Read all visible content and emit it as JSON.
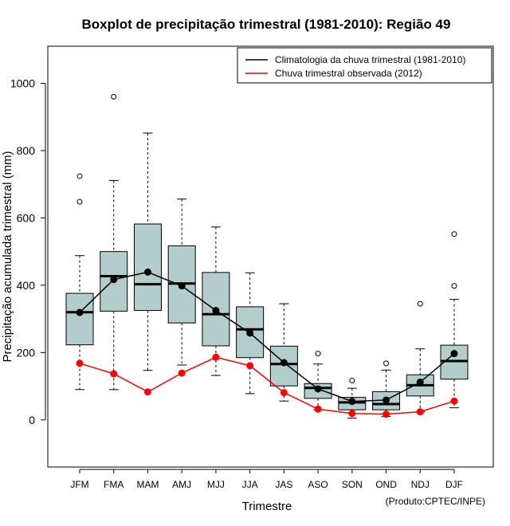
{
  "chart_data": {
    "type": "boxplot",
    "title": "Boxplot de precipitação trimestral (1981-2010): Região 49",
    "xlabel": "Trimestre",
    "ylabel": "Precipitação acumulada trimestral (mm)",
    "credit": "(Produto:CPTEC/INPE)",
    "ylim": [
      -140,
      1110
    ],
    "yticks": [
      0,
      200,
      400,
      600,
      800,
      1000
    ],
    "categories": [
      "JFM",
      "FMA",
      "MAM",
      "AMJ",
      "MJJ",
      "JJA",
      "JAS",
      "ASO",
      "SON",
      "OND",
      "NDJ",
      "DJF"
    ],
    "boxes": [
      {
        "low": 90,
        "q1": 223,
        "median": 320,
        "q3": 376,
        "high": 488,
        "outliers": [
          648,
          724
        ]
      },
      {
        "low": 90,
        "q1": 323,
        "median": 427,
        "q3": 500,
        "high": 711,
        "outliers": [
          960
        ]
      },
      {
        "low": 147,
        "q1": 325,
        "median": 403,
        "q3": 582,
        "high": 852,
        "outliers": []
      },
      {
        "low": 163,
        "q1": 288,
        "median": 405,
        "q3": 517,
        "high": 656,
        "outliers": []
      },
      {
        "low": 132,
        "q1": 220,
        "median": 314,
        "q3": 438,
        "high": 573,
        "outliers": []
      },
      {
        "low": 78,
        "q1": 185,
        "median": 269,
        "q3": 336,
        "high": 437,
        "outliers": []
      },
      {
        "low": 56,
        "q1": 101,
        "median": 166,
        "q3": 219,
        "high": 345,
        "outliers": []
      },
      {
        "low": 30,
        "q1": 64,
        "median": 95,
        "q3": 108,
        "high": 166,
        "outliers": [
          197
        ]
      },
      {
        "low": 5,
        "q1": 30,
        "median": 52,
        "q3": 67,
        "high": 94,
        "outliers": [
          117
        ]
      },
      {
        "low": 10,
        "q1": 30,
        "median": 47,
        "q3": 84,
        "high": 148,
        "outliers": [
          168
        ]
      },
      {
        "low": 24,
        "q1": 71,
        "median": 103,
        "q3": 134,
        "high": 211,
        "outliers": [
          345
        ]
      },
      {
        "low": 36,
        "q1": 121,
        "median": 175,
        "q3": 222,
        "high": 358,
        "outliers": [
          398,
          552
        ]
      }
    ],
    "series": [
      {
        "name": "Climatologia da chuva trimestral (1981-2010)",
        "color": "#000000",
        "values": [
          319,
          417,
          439,
          398,
          325,
          258,
          170,
          92,
          55,
          59,
          112,
          197
        ]
      },
      {
        "name": "Chuva trimestral observada (2012)",
        "color": "#ff0000",
        "values": [
          168,
          137,
          83,
          139,
          186,
          161,
          81,
          32,
          19,
          17,
          24,
          56
        ]
      }
    ],
    "box_color": "#b3cccc",
    "legend_position": "top-right"
  }
}
